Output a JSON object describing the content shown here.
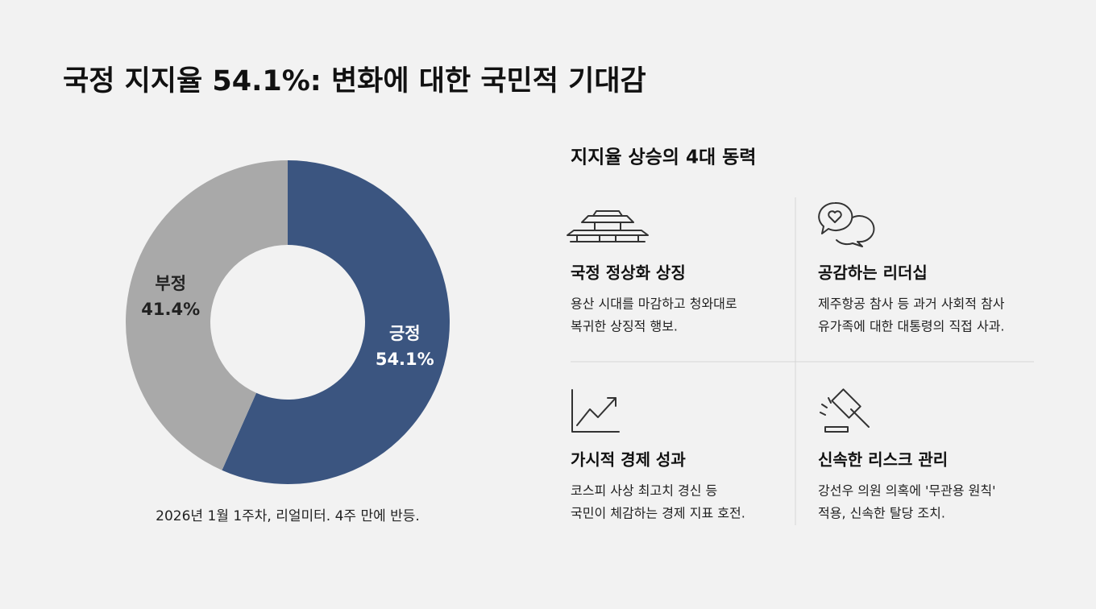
{
  "chart_data": {
    "type": "pie",
    "donut": true,
    "title": "국정 지지율 54.1%: 변화에 대한 국민적 기대감",
    "caption": "2026년 1월 1주차, 리얼미터. 4주 만에 반등.",
    "categories": [
      "긍정",
      "부정"
    ],
    "values": [
      54.1,
      41.4
    ],
    "value_labels": [
      "54.1%",
      "41.4%"
    ],
    "colors": [
      "#3b5580",
      "#a9a9a9"
    ],
    "label_colors": [
      "#ffffff",
      "#222222"
    ]
  },
  "drivers": {
    "title": "지지율 상승의 4대 동력",
    "items": [
      {
        "title": "국정 정상화 상징",
        "lines": [
          "용산 시대를 마감하고 청와대로",
          "복귀한 상징적 행보."
        ]
      },
      {
        "title": "공감하는 리더십",
        "lines": [
          "제주항공 참사 등 과거 사회적 참사",
          "유가족에 대한 대통령의 직접 사과."
        ]
      },
      {
        "title": "가시적 경제 성과",
        "lines": [
          "코스피 사상 최고치 경신 등",
          "국민이 체감하는 경제 지표 호전."
        ]
      },
      {
        "title": "신속한 리스크 관리",
        "lines": [
          "강선우 의원 의혹에 '무관용 원칙'",
          "적용, 신속한 탈당 조치."
        ]
      }
    ]
  }
}
